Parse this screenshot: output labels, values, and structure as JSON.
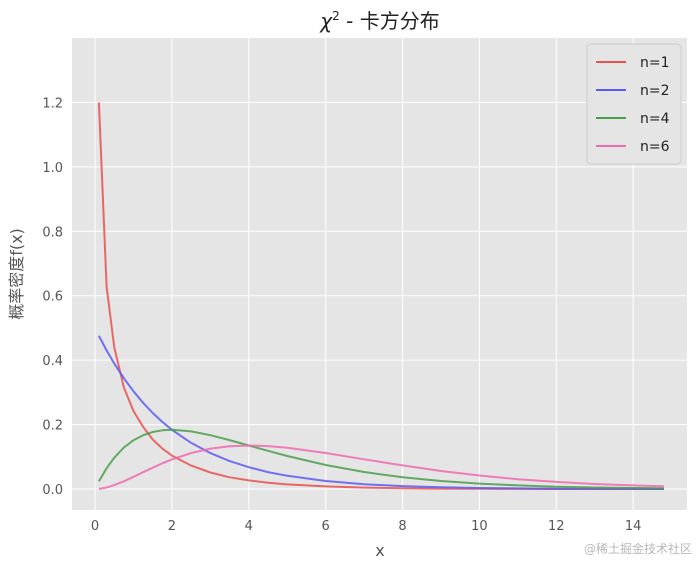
{
  "chart_data": {
    "type": "line",
    "title_main": "χ",
    "title_sup": "2",
    "title_rest": " - 卡方分布",
    "xlabel": "x",
    "ylabel": "概率密度f(x)",
    "xlim": [
      -0.6,
      15.4
    ],
    "ylim": [
      -0.065,
      1.4
    ],
    "xticks": [
      0,
      2,
      4,
      6,
      8,
      10,
      12,
      14
    ],
    "yticks": [
      0.0,
      0.2,
      0.4,
      0.6,
      0.8,
      1.0,
      1.2
    ],
    "grid": true,
    "legend_position": "top-right",
    "x": [
      0.1,
      0.3,
      0.5,
      0.75,
      1.0,
      1.25,
      1.5,
      1.75,
      2.0,
      2.5,
      3.0,
      3.5,
      4.0,
      4.5,
      5.0,
      6.0,
      7.0,
      8.0,
      9.0,
      10.0,
      11.0,
      12.0,
      13.0,
      14.0,
      14.8
    ],
    "series": [
      {
        "name": "n=1",
        "color": "#e8514d",
        "values": [
          1.2,
          0.6275,
          0.4394,
          0.3153,
          0.242,
          0.1931,
          0.1539,
          0.1259,
          0.1038,
          0.0727,
          0.0514,
          0.0366,
          0.027,
          0.0198,
          0.0146,
          0.0081,
          0.0046,
          0.0026,
          0.0015,
          0.0009,
          0.0005,
          0.0003,
          0.0002,
          0.0001,
          0.0001
        ]
      },
      {
        "name": "n=2",
        "color": "#5a5af5",
        "values": [
          0.4756,
          0.4304,
          0.3894,
          0.3437,
          0.3033,
          0.2676,
          0.2362,
          0.2084,
          0.1839,
          0.1433,
          0.1116,
          0.0869,
          0.0677,
          0.0527,
          0.041,
          0.0249,
          0.0151,
          0.0092,
          0.0056,
          0.0034,
          0.002,
          0.0012,
          0.0008,
          0.0005,
          0.0003
        ]
      },
      {
        "name": "n=4",
        "color": "#4a9e4a",
        "values": [
          0.0238,
          0.0646,
          0.0974,
          0.1289,
          0.1516,
          0.1673,
          0.1771,
          0.1824,
          0.1839,
          0.1791,
          0.1673,
          0.1521,
          0.1353,
          0.1186,
          0.1026,
          0.0747,
          0.0528,
          0.0366,
          0.025,
          0.0168,
          0.0112,
          0.0074,
          0.0049,
          0.0032,
          0.0023
        ]
      },
      {
        "name": "n=6",
        "color": "#f06ab0",
        "values": [
          0.0006,
          0.0048,
          0.0122,
          0.0242,
          0.0379,
          0.0523,
          0.0664,
          0.0798,
          0.092,
          0.1119,
          0.1255,
          0.1331,
          0.1353,
          0.1334,
          0.1283,
          0.112,
          0.0925,
          0.0733,
          0.0562,
          0.0421,
          0.0307,
          0.0223,
          0.0158,
          0.0112,
          0.0085
        ]
      }
    ]
  },
  "watermark": "@稀土掘金技术社区"
}
